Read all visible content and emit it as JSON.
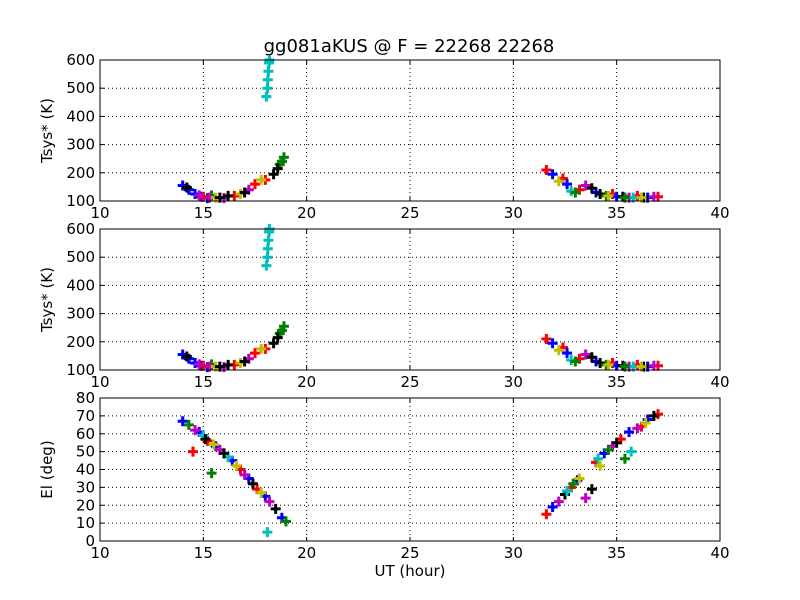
{
  "chart_data": [
    {
      "type": "scatter",
      "title": "gg081aKUS @ F = 22268 22268",
      "xlabel": "",
      "ylabel": "Tsys* (K)",
      "xlim": [
        10,
        40
      ],
      "ylim": [
        100,
        600
      ],
      "xticks": [
        "10",
        "15",
        "20",
        "25",
        "30",
        "35",
        "40"
      ],
      "yticks": [
        "100",
        "200",
        "300",
        "400",
        "500",
        "600"
      ],
      "grid": true,
      "series": [
        {
          "color": "#0000ff",
          "marker": "plus",
          "x": [
            14.0,
            14.3,
            14.6,
            14.9,
            15.2
          ],
          "y": [
            155,
            140,
            125,
            115,
            110
          ]
        },
        {
          "color": "#008000",
          "marker": "plus",
          "x": [
            15.4,
            18.9,
            18.7,
            18.8
          ],
          "y": [
            120,
            255,
            230,
            240
          ]
        },
        {
          "color": "#ff0000",
          "marker": "plus",
          "x": [
            15.0,
            16.5,
            17.5,
            18.0
          ],
          "y": [
            115,
            118,
            160,
            175
          ]
        },
        {
          "color": "#bf00bf",
          "marker": "plus",
          "x": [
            14.8,
            15.3,
            16.0,
            17.2
          ],
          "y": [
            120,
            112,
            110,
            140
          ]
        },
        {
          "color": "#00bfbf",
          "marker": "plus",
          "x": [
            18.05,
            18.1,
            18.12,
            18.15,
            18.18,
            18.2
          ],
          "y": [
            470,
            500,
            530,
            560,
            590,
            600
          ]
        },
        {
          "color": "#bfbf00",
          "marker": "plus",
          "x": [
            15.6,
            16.8,
            17.8
          ],
          "y": [
            112,
            125,
            175
          ]
        },
        {
          "color": "#000000",
          "marker": "plus",
          "x": [
            14.2,
            15.8,
            16.2,
            17.0,
            18.4,
            18.6
          ],
          "y": [
            148,
            112,
            118,
            130,
            195,
            215
          ]
        },
        {
          "color": "#ff0000",
          "marker": "plus",
          "x": [
            31.6,
            32.4,
            33.2,
            34.8,
            36.0,
            37.0
          ],
          "y": [
            210,
            180,
            140,
            125,
            118,
            115
          ]
        },
        {
          "color": "#0000ff",
          "marker": "plus",
          "x": [
            31.9,
            32.6,
            34.0,
            35.0,
            36.5
          ],
          "y": [
            195,
            160,
            130,
            115,
            112
          ]
        },
        {
          "color": "#bf00bf",
          "marker": "plus",
          "x": [
            33.5,
            35.6,
            36.8
          ],
          "y": [
            155,
            112,
            115
          ]
        },
        {
          "color": "#000000",
          "marker": "plus",
          "x": [
            33.8,
            34.2,
            35.3,
            36.3
          ],
          "y": [
            145,
            125,
            115,
            112
          ]
        },
        {
          "color": "#00bfbf",
          "marker": "plus",
          "x": [
            32.8,
            35.8
          ],
          "y": [
            135,
            112
          ]
        },
        {
          "color": "#008000",
          "marker": "plus",
          "x": [
            33.0,
            34.5,
            35.4
          ],
          "y": [
            130,
            118,
            112
          ]
        },
        {
          "color": "#bfbf00",
          "marker": "plus",
          "x": [
            32.2,
            34.6,
            36.2
          ],
          "y": [
            170,
            118,
            112
          ]
        }
      ]
    },
    {
      "type": "scatter",
      "title": "",
      "xlabel": "",
      "ylabel": "Tsys* (K)",
      "xlim": [
        10,
        40
      ],
      "ylim": [
        100,
        600
      ],
      "xticks": [
        "10",
        "15",
        "20",
        "25",
        "30",
        "35",
        "40"
      ],
      "yticks": [
        "100",
        "200",
        "300",
        "400",
        "500",
        "600"
      ],
      "grid": true,
      "series": [
        {
          "color": "#0000ff",
          "marker": "plus",
          "x": [
            14.0,
            14.3,
            14.6,
            14.9,
            15.2
          ],
          "y": [
            155,
            140,
            125,
            115,
            110
          ]
        },
        {
          "color": "#008000",
          "marker": "plus",
          "x": [
            15.4,
            18.9,
            18.7,
            18.8
          ],
          "y": [
            120,
            255,
            230,
            240
          ]
        },
        {
          "color": "#ff0000",
          "marker": "plus",
          "x": [
            15.0,
            16.5,
            17.5,
            18.0
          ],
          "y": [
            115,
            118,
            160,
            175
          ]
        },
        {
          "color": "#bf00bf",
          "marker": "plus",
          "x": [
            14.8,
            15.3,
            16.0,
            17.2
          ],
          "y": [
            120,
            112,
            110,
            140
          ]
        },
        {
          "color": "#00bfbf",
          "marker": "plus",
          "x": [
            18.05,
            18.1,
            18.12,
            18.15,
            18.18,
            18.2
          ],
          "y": [
            470,
            500,
            530,
            560,
            590,
            600
          ]
        },
        {
          "color": "#bfbf00",
          "marker": "plus",
          "x": [
            15.6,
            16.8,
            17.8
          ],
          "y": [
            112,
            125,
            175
          ]
        },
        {
          "color": "#000000",
          "marker": "plus",
          "x": [
            14.2,
            15.8,
            16.2,
            17.0,
            18.4,
            18.6
          ],
          "y": [
            148,
            112,
            118,
            130,
            195,
            215
          ]
        },
        {
          "color": "#ff0000",
          "marker": "plus",
          "x": [
            31.6,
            32.4,
            33.2,
            34.8,
            36.0,
            37.0
          ],
          "y": [
            210,
            180,
            140,
            125,
            118,
            115
          ]
        },
        {
          "color": "#0000ff",
          "marker": "plus",
          "x": [
            31.9,
            32.6,
            34.0,
            35.0,
            36.5
          ],
          "y": [
            195,
            160,
            130,
            115,
            112
          ]
        },
        {
          "color": "#bf00bf",
          "marker": "plus",
          "x": [
            33.5,
            35.6,
            36.8
          ],
          "y": [
            155,
            112,
            115
          ]
        },
        {
          "color": "#000000",
          "marker": "plus",
          "x": [
            33.8,
            34.2,
            35.3,
            36.3
          ],
          "y": [
            145,
            125,
            115,
            112
          ]
        },
        {
          "color": "#00bfbf",
          "marker": "plus",
          "x": [
            32.8,
            35.8
          ],
          "y": [
            135,
            112
          ]
        },
        {
          "color": "#008000",
          "marker": "plus",
          "x": [
            33.0,
            34.5,
            35.4
          ],
          "y": [
            130,
            118,
            112
          ]
        },
        {
          "color": "#bfbf00",
          "marker": "plus",
          "x": [
            32.2,
            34.6,
            36.2
          ],
          "y": [
            170,
            118,
            112
          ]
        }
      ]
    },
    {
      "type": "scatter",
      "title": "",
      "xlabel": "UT (hour)",
      "ylabel": "El (deg)",
      "xlim": [
        10,
        40
      ],
      "ylim": [
        0,
        80
      ],
      "xticks": [
        "10",
        "15",
        "20",
        "25",
        "30",
        "35",
        "40"
      ],
      "yticks": [
        "0",
        "10",
        "20",
        "30",
        "40",
        "50",
        "60",
        "70",
        "80"
      ],
      "grid": true,
      "series": [
        {
          "color": "#0000ff",
          "marker": "plus",
          "x": [
            14.0,
            14.8,
            15.6,
            16.4,
            17.2,
            18.0,
            18.8
          ],
          "y": [
            67,
            61,
            53,
            45,
            35,
            25,
            13
          ]
        },
        {
          "color": "#008000",
          "marker": "plus",
          "x": [
            14.3,
            15.4,
            19.0
          ],
          "y": [
            65,
            38,
            11
          ]
        },
        {
          "color": "#ff0000",
          "marker": "plus",
          "x": [
            14.5,
            15.2,
            16.8,
            17.6
          ],
          "y": [
            50,
            56,
            40,
            29
          ]
        },
        {
          "color": "#bf00bf",
          "marker": "plus",
          "x": [
            14.6,
            15.8,
            17.0,
            18.2
          ],
          "y": [
            62,
            51,
            37,
            22
          ]
        },
        {
          "color": "#00bfbf",
          "marker": "plus",
          "x": [
            15.0,
            16.2,
            18.1
          ],
          "y": [
            59,
            47,
            5
          ]
        },
        {
          "color": "#bfbf00",
          "marker": "plus",
          "x": [
            15.5,
            16.6,
            17.8
          ],
          "y": [
            54,
            42,
            27
          ]
        },
        {
          "color": "#000000",
          "marker": "plus",
          "x": [
            15.1,
            16.0,
            17.4,
            18.5
          ],
          "y": [
            57,
            49,
            32,
            18
          ]
        },
        {
          "color": "#ff0000",
          "marker": "plus",
          "x": [
            31.6,
            32.8,
            34.0,
            35.2,
            36.2,
            37.0
          ],
          "y": [
            15,
            30,
            44,
            57,
            64,
            71
          ]
        },
        {
          "color": "#0000ff",
          "marker": "plus",
          "x": [
            31.9,
            33.1,
            34.4,
            35.6,
            36.5
          ],
          "y": [
            19,
            34,
            49,
            61,
            68
          ]
        },
        {
          "color": "#bf00bf",
          "marker": "plus",
          "x": [
            32.2,
            33.5,
            34.8,
            36.0
          ],
          "y": [
            22,
            24,
            53,
            63
          ]
        },
        {
          "color": "#000000",
          "marker": "plus",
          "x": [
            32.5,
            33.8,
            35.0,
            36.8
          ],
          "y": [
            26,
            29,
            55,
            70
          ]
        },
        {
          "color": "#00bfbf",
          "marker": "plus",
          "x": [
            32.6,
            34.1,
            35.7
          ],
          "y": [
            28,
            46,
            50
          ]
        },
        {
          "color": "#008000",
          "marker": "plus",
          "x": [
            32.9,
            34.6,
            35.4
          ],
          "y": [
            32,
            51,
            46
          ]
        },
        {
          "color": "#bfbf00",
          "marker": "plus",
          "x": [
            33.2,
            34.2,
            36.4
          ],
          "y": [
            35,
            42,
            66
          ]
        }
      ]
    }
  ]
}
